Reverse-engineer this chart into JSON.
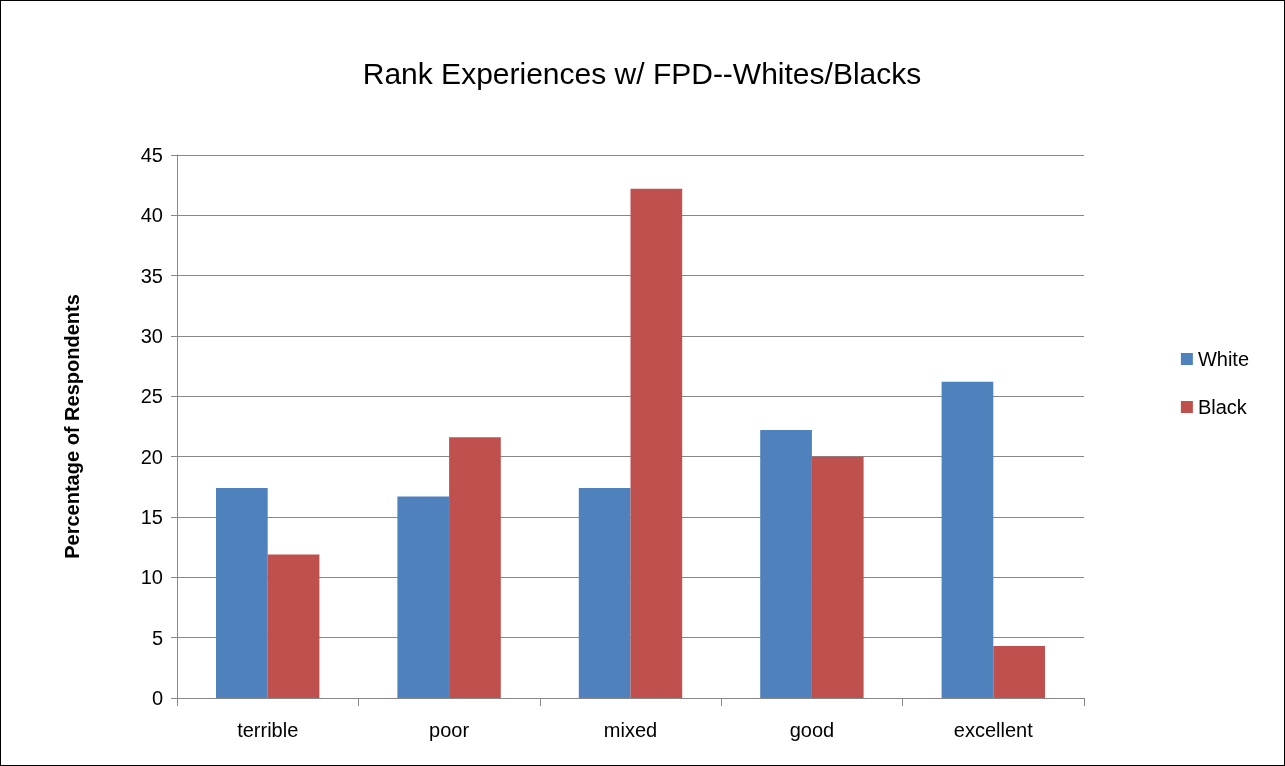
{
  "chart_data": {
    "type": "bar",
    "title": "Rank Experiences w/ FPD--Whites/Blacks",
    "ylabel": "Percentage of Respondents",
    "categories": [
      "terrible",
      "poor",
      "mixed",
      "good",
      "excellent"
    ],
    "series": [
      {
        "name": "White",
        "color": "#4f81bd",
        "values": [
          17.4,
          16.7,
          17.4,
          22.2,
          26.2
        ]
      },
      {
        "name": "Black",
        "color": "#c0504d",
        "values": [
          11.9,
          21.6,
          42.2,
          20.0,
          4.3
        ]
      }
    ],
    "ylim": [
      0,
      45
    ],
    "yticks": [
      0,
      5,
      10,
      15,
      20,
      25,
      30,
      35,
      40,
      45
    ],
    "grid": "y",
    "legend": "right"
  }
}
